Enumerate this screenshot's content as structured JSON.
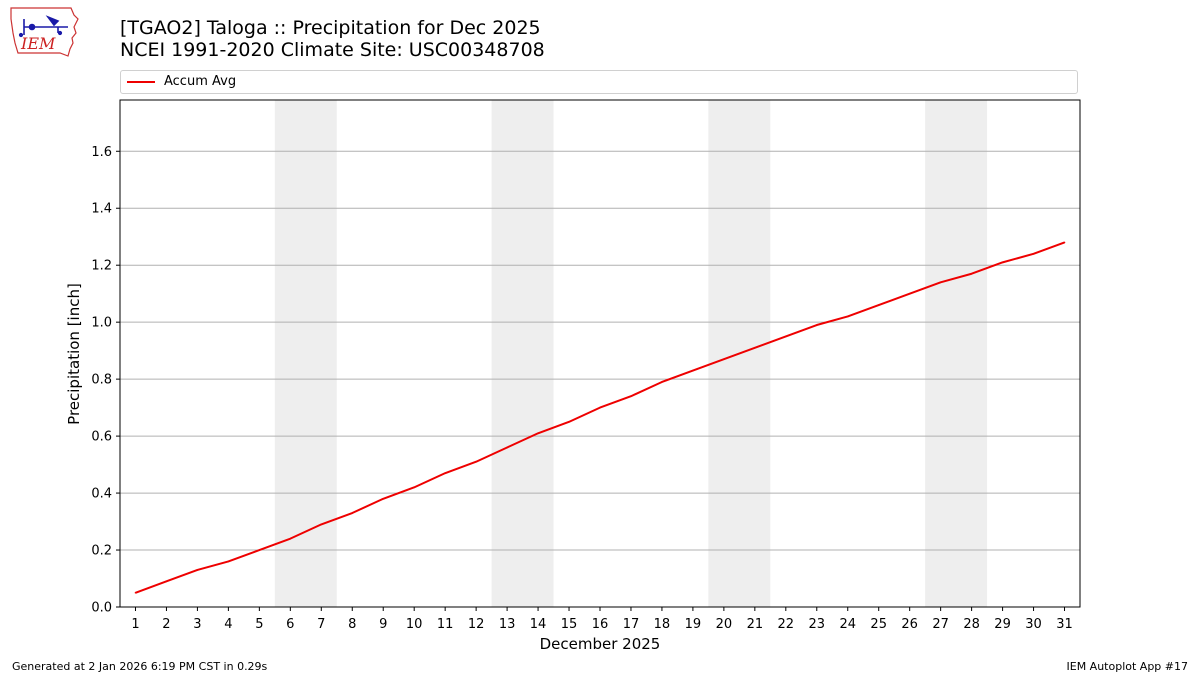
{
  "header": {
    "title_line1": "[TGAO2] Taloga :: Precipitation for Dec 2025",
    "title_line2": "NCEI 1991-2020 Climate Site: USC00348708"
  },
  "logo": {
    "text": "IEM",
    "icon": "iem-iowa-logo"
  },
  "legend": {
    "entries": [
      {
        "label": "Accum Avg",
        "color": "#ee0000"
      }
    ]
  },
  "footer": {
    "left": "Generated at 2 Jan 2026 6:19 PM CST in 0.29s",
    "right": "IEM Autoplot App #17"
  },
  "colors": {
    "line": "#ee0000",
    "weekend_shade": "#eeeeee",
    "grid": "#b0b0b0"
  },
  "chart_data": {
    "type": "line",
    "xlabel": "December 2025",
    "ylabel": "Precipitation [inch]",
    "x": [
      1,
      2,
      3,
      4,
      5,
      6,
      7,
      8,
      9,
      10,
      11,
      12,
      13,
      14,
      15,
      16,
      17,
      18,
      19,
      20,
      21,
      22,
      23,
      24,
      25,
      26,
      27,
      28,
      29,
      30,
      31
    ],
    "xlim": [
      0.5,
      31.5
    ],
    "ylim": [
      0,
      1.78
    ],
    "yticks": [
      0.0,
      0.2,
      0.4,
      0.6,
      0.8,
      1.0,
      1.2,
      1.4,
      1.6
    ],
    "ytick_labels": [
      "0.0",
      "0.2",
      "0.4",
      "0.6",
      "0.8",
      "1.0",
      "1.2",
      "1.4",
      "1.6"
    ],
    "grid": "horizontal",
    "legend_position": "top",
    "weekend_bands": [
      [
        6,
        7
      ],
      [
        13,
        14
      ],
      [
        20,
        21
      ],
      [
        27,
        28
      ]
    ],
    "series": [
      {
        "name": "Accum Avg",
        "color": "#ee0000",
        "values": [
          0.05,
          0.09,
          0.13,
          0.16,
          0.2,
          0.24,
          0.29,
          0.33,
          0.38,
          0.42,
          0.47,
          0.51,
          0.56,
          0.61,
          0.65,
          0.7,
          0.74,
          0.79,
          0.83,
          0.87,
          0.91,
          0.95,
          0.99,
          1.02,
          1.06,
          1.1,
          1.14,
          1.17,
          1.21,
          1.24,
          1.28
        ]
      }
    ]
  }
}
